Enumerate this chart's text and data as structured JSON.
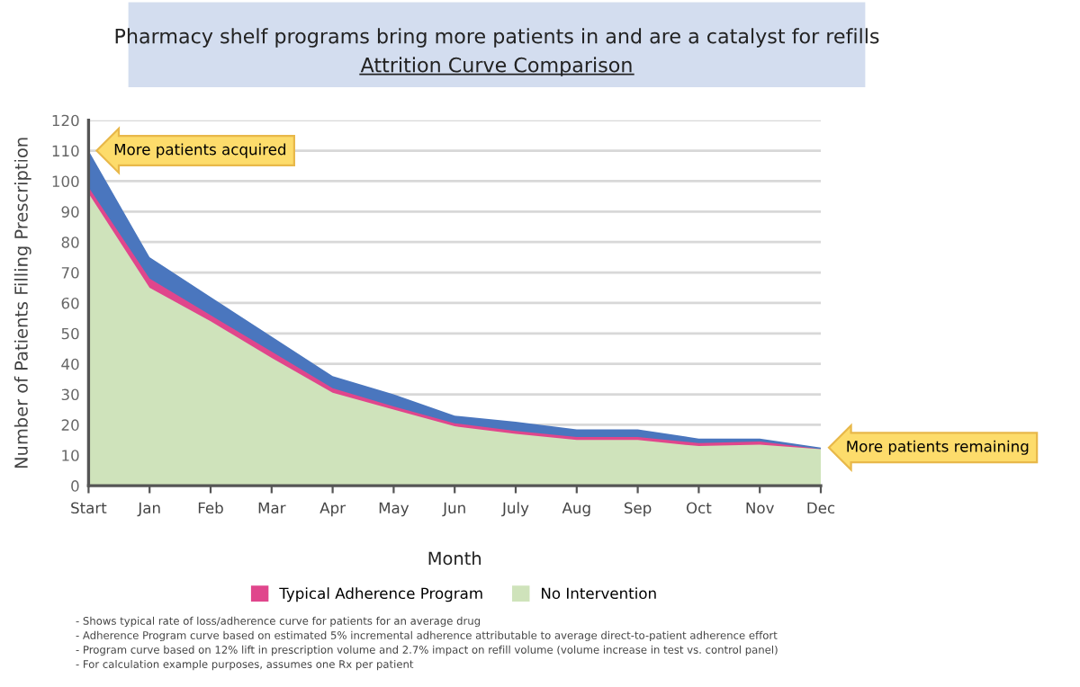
{
  "chart_data": {
    "type": "area",
    "title": "Pharmacy shelf programs bring more patients in and are a catalyst for refills",
    "subtitle": "Attrition Curve Comparison",
    "xlabel": "Month",
    "ylabel": "Number of Patients Filling Prescription",
    "categories": [
      "Start",
      "Jan",
      "Feb",
      "Mar",
      "Apr",
      "May",
      "Jun",
      "July",
      "Aug",
      "Sep",
      "Oct",
      "Nov",
      "Dec"
    ],
    "series": [
      {
        "color": "#4a76be",
        "values": [
          110,
          75,
          62,
          49,
          36,
          30,
          23,
          21,
          18.5,
          18.5,
          15.5,
          15.5,
          12.5
        ]
      },
      {
        "name": "Typical Adherence Program",
        "color": "#e0468c",
        "values": [
          98,
          68,
          56,
          44,
          32,
          26,
          20.5,
          18,
          16,
          16,
          14,
          14.5,
          12
        ]
      },
      {
        "name": "No Intervention",
        "color": "#cfe3bb",
        "values": [
          96,
          65,
          54,
          42,
          30.5,
          25,
          19.5,
          17,
          15,
          15,
          13,
          13.5,
          12
        ]
      }
    ],
    "ylim": [
      0,
      120
    ],
    "yticks": [
      0,
      10,
      20,
      30,
      40,
      50,
      60,
      70,
      80,
      90,
      100,
      110,
      120
    ],
    "grid": "y",
    "legend": "bottom",
    "annotations": [
      {
        "text": "More patients acquired",
        "x": "Start",
        "y": 110
      },
      {
        "text": "More patients remaining",
        "x": "Dec",
        "y": 12.5
      },
      "- Shows typical rate of loss/adherence curve for patients for an average drug",
      "- Adherence Program curve based on estimated 5% incremental adherence attributable to average direct-to-patient adherence effort",
      "- Program curve based on 12% lift in prescription volume and 2.7% impact on refill volume (volume increase in test vs. control panel)",
      "- For calculation example purposes, assumes one Rx per patient"
    ]
  }
}
